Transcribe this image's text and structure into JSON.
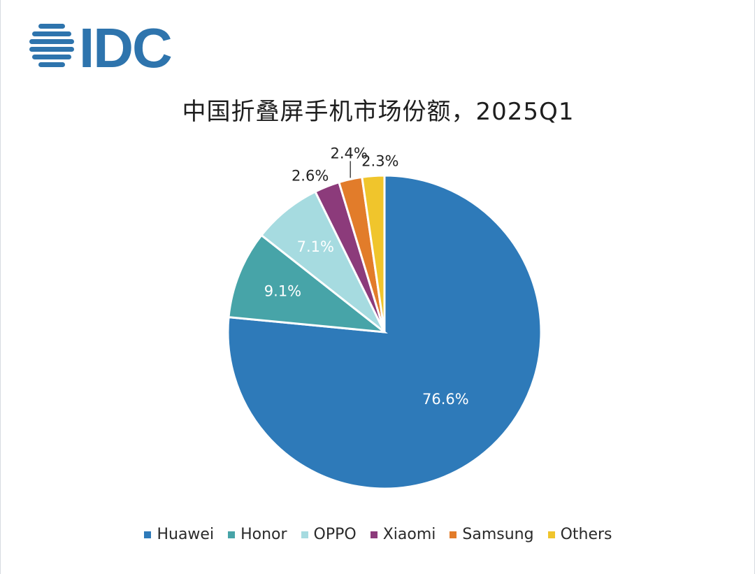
{
  "logo": {
    "text": "IDC",
    "color": "#2e74ad"
  },
  "chart_data": {
    "type": "pie",
    "title": "中国折叠屏手机市场份额，2025Q1",
    "start_angle_deg": 0,
    "direction": "clockwise",
    "legend_position": "bottom",
    "slices": [
      {
        "name": "Huawei",
        "value": 76.6,
        "label": "76.6%",
        "color": "#2e7ab9",
        "label_color": "#ffffff",
        "label_inside": true
      },
      {
        "name": "Honor",
        "value": 9.1,
        "label": "9.1%",
        "color": "#47a4a8",
        "label_color": "#ffffff",
        "label_inside": true
      },
      {
        "name": "OPPO",
        "value": 7.1,
        "label": "7.1%",
        "color": "#a6dbe0",
        "label_color": "#ffffff",
        "label_inside": true
      },
      {
        "name": "Xiaomi",
        "value": 2.6,
        "label": "2.6%",
        "color": "#8c3b7b",
        "label_color": "#222222",
        "label_inside": false
      },
      {
        "name": "Samsung",
        "value": 2.4,
        "label": "2.4%",
        "color": "#e27c2a",
        "label_color": "#222222",
        "label_inside": false
      },
      {
        "name": "Others",
        "value": 2.3,
        "label": "2.3%",
        "color": "#f0c52c",
        "label_color": "#222222",
        "label_inside": false
      }
    ]
  },
  "legend": {
    "items": [
      {
        "label": "Huawei",
        "color": "#2e7ab9"
      },
      {
        "label": "Honor",
        "color": "#47a4a8"
      },
      {
        "label": "OPPO",
        "color": "#a6dbe0"
      },
      {
        "label": "Xiaomi",
        "color": "#8c3b7b"
      },
      {
        "label": "Samsung",
        "color": "#e27c2a"
      },
      {
        "label": "Others",
        "color": "#f0c52c"
      }
    ]
  }
}
